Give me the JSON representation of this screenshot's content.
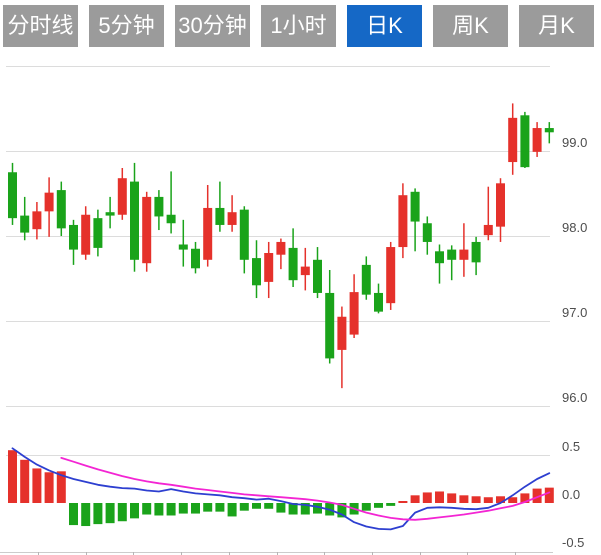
{
  "toolbar": {
    "tabs": [
      {
        "label": "分时线",
        "active": false
      },
      {
        "label": "5分钟",
        "active": false
      },
      {
        "label": "30分钟",
        "active": false
      },
      {
        "label": "1小时",
        "active": false
      },
      {
        "label": "日K",
        "active": true
      },
      {
        "label": "周K",
        "active": false
      },
      {
        "label": "月K",
        "active": false
      }
    ]
  },
  "colors": {
    "tab_bg": "#9b9b9b",
    "tab_active_bg": "#1568c6",
    "tab_text": "#ffffff",
    "up_red": "#e5312b",
    "down_green": "#1aa31a",
    "dif_line_blue": "#2d3fd0",
    "dea_line_magenta": "#f325d3",
    "gridline": "#dcdcdc",
    "axis_text": "#4d4d4d",
    "axis_line": "#cccccc",
    "tick": "#b5b5b5"
  },
  "chart_data": {
    "type": "candlestick",
    "title": "日K (daily K-line) with MACD indicator",
    "legend_position": "none",
    "grid": true,
    "color_convention": "chinese (red = up, green = down)",
    "main": {
      "ylim": [
        95.9,
        100.0
      ],
      "y_gridlines": [
        100.0,
        99.0,
        98.0,
        97.0,
        96.0
      ],
      "y_tick_labels": [
        {
          "text": "99.0",
          "value": 99.0
        },
        {
          "text": "98.0",
          "value": 98.0
        },
        {
          "text": "97.0",
          "value": 97.0
        },
        {
          "text": "96.0",
          "value": 96.0
        }
      ],
      "ohlc": [
        [
          98.75,
          98.86,
          98.13,
          98.21
        ],
        [
          98.24,
          98.46,
          97.95,
          98.04
        ],
        [
          98.08,
          98.4,
          97.96,
          98.29
        ],
        [
          98.29,
          98.69,
          97.99,
          98.51
        ],
        [
          98.54,
          98.64,
          98.0,
          98.09
        ],
        [
          98.13,
          98.19,
          97.66,
          97.84
        ],
        [
          97.78,
          98.35,
          97.72,
          98.25
        ],
        [
          98.21,
          98.31,
          97.76,
          97.86
        ],
        [
          98.28,
          98.46,
          98.09,
          98.24
        ],
        [
          98.25,
          98.8,
          98.19,
          98.68
        ],
        [
          98.64,
          98.86,
          97.58,
          97.72
        ],
        [
          97.68,
          98.52,
          97.58,
          98.46
        ],
        [
          98.46,
          98.54,
          98.07,
          98.23
        ],
        [
          98.25,
          98.76,
          98.03,
          98.15
        ],
        [
          97.9,
          98.19,
          97.64,
          97.84
        ],
        [
          97.85,
          97.93,
          97.56,
          97.62
        ],
        [
          97.72,
          98.6,
          97.64,
          98.33
        ],
        [
          98.33,
          98.64,
          98.05,
          98.13
        ],
        [
          98.13,
          98.48,
          98.05,
          98.28
        ],
        [
          98.31,
          98.35,
          97.56,
          97.72
        ],
        [
          97.74,
          97.95,
          97.27,
          97.42
        ],
        [
          97.46,
          97.93,
          97.27,
          97.8
        ],
        [
          97.78,
          97.97,
          97.61,
          97.93
        ],
        [
          97.86,
          98.09,
          97.4,
          97.48
        ],
        [
          97.54,
          97.86,
          97.36,
          97.64
        ],
        [
          97.72,
          97.87,
          97.27,
          97.33
        ],
        [
          97.33,
          97.6,
          96.5,
          96.56
        ],
        [
          96.66,
          97.17,
          96.21,
          97.05
        ],
        [
          96.84,
          97.55,
          96.8,
          97.34
        ],
        [
          97.66,
          97.76,
          97.25,
          97.31
        ],
        [
          97.33,
          97.44,
          97.09,
          97.11
        ],
        [
          97.21,
          97.93,
          97.13,
          97.87
        ],
        [
          97.87,
          98.62,
          97.74,
          98.48
        ],
        [
          98.52,
          98.56,
          97.82,
          98.17
        ],
        [
          98.15,
          98.23,
          97.78,
          97.93
        ],
        [
          97.82,
          97.9,
          97.44,
          97.68
        ],
        [
          97.84,
          97.89,
          97.48,
          97.72
        ],
        [
          97.72,
          98.15,
          97.52,
          97.84
        ],
        [
          97.93,
          97.99,
          97.54,
          97.69
        ],
        [
          98.01,
          98.58,
          97.95,
          98.13
        ],
        [
          98.11,
          98.68,
          97.93,
          98.62
        ],
        [
          98.87,
          99.56,
          98.72,
          99.39
        ],
        [
          99.42,
          99.46,
          98.8,
          98.81
        ],
        [
          98.99,
          99.34,
          98.93,
          99.27
        ],
        [
          99.27,
          99.34,
          99.09,
          99.22
        ]
      ]
    },
    "macd": {
      "ylim": [
        -0.55,
        0.6
      ],
      "y_gridlines": [
        0.5
      ],
      "y_tick_labels": [
        {
          "text": "0.5",
          "value": 0.5
        },
        {
          "text": "0.0",
          "value": 0.0
        },
        {
          "text": "-0.5",
          "value": -0.5
        }
      ],
      "histogram": [
        0.55,
        0.45,
        0.36,
        0.32,
        0.33,
        -0.23,
        -0.24,
        -0.22,
        -0.21,
        -0.19,
        -0.16,
        -0.12,
        -0.13,
        -0.13,
        -0.11,
        -0.11,
        -0.09,
        -0.09,
        -0.14,
        -0.08,
        -0.06,
        -0.06,
        -0.1,
        -0.12,
        -0.12,
        -0.11,
        -0.13,
        -0.15,
        -0.12,
        -0.08,
        -0.05,
        -0.03,
        0.02,
        0.08,
        0.11,
        0.12,
        0.1,
        0.08,
        0.07,
        0.06,
        0.07,
        0.06,
        0.1,
        0.15,
        0.16
      ],
      "dif": [
        0.57,
        0.48,
        0.4,
        0.34,
        0.29,
        0.25,
        0.22,
        0.19,
        0.17,
        0.155,
        0.15,
        0.13,
        0.12,
        0.145,
        0.12,
        0.1,
        0.09,
        0.08,
        0.06,
        0.05,
        0.035,
        0.045,
        0.02,
        -0.01,
        -0.02,
        -0.04,
        -0.07,
        -0.12,
        -0.2,
        -0.245,
        -0.27,
        -0.275,
        -0.24,
        -0.1,
        -0.05,
        -0.045,
        -0.05,
        -0.06,
        -0.065,
        -0.05,
        0.0,
        0.08,
        0.17,
        0.25,
        0.31
      ],
      "dea": [
        null,
        null,
        null,
        null,
        0.47,
        0.43,
        0.39,
        0.35,
        0.315,
        0.28,
        0.25,
        0.225,
        0.205,
        0.19,
        0.17,
        0.15,
        0.135,
        0.12,
        0.105,
        0.09,
        0.08,
        0.07,
        0.06,
        0.05,
        0.04,
        0.025,
        0.005,
        -0.02,
        -0.06,
        -0.1,
        -0.13,
        -0.155,
        -0.17,
        -0.175,
        -0.165,
        -0.15,
        -0.135,
        -0.12,
        -0.1,
        -0.08,
        -0.055,
        -0.03,
        0.01,
        0.06,
        0.11
      ]
    }
  }
}
